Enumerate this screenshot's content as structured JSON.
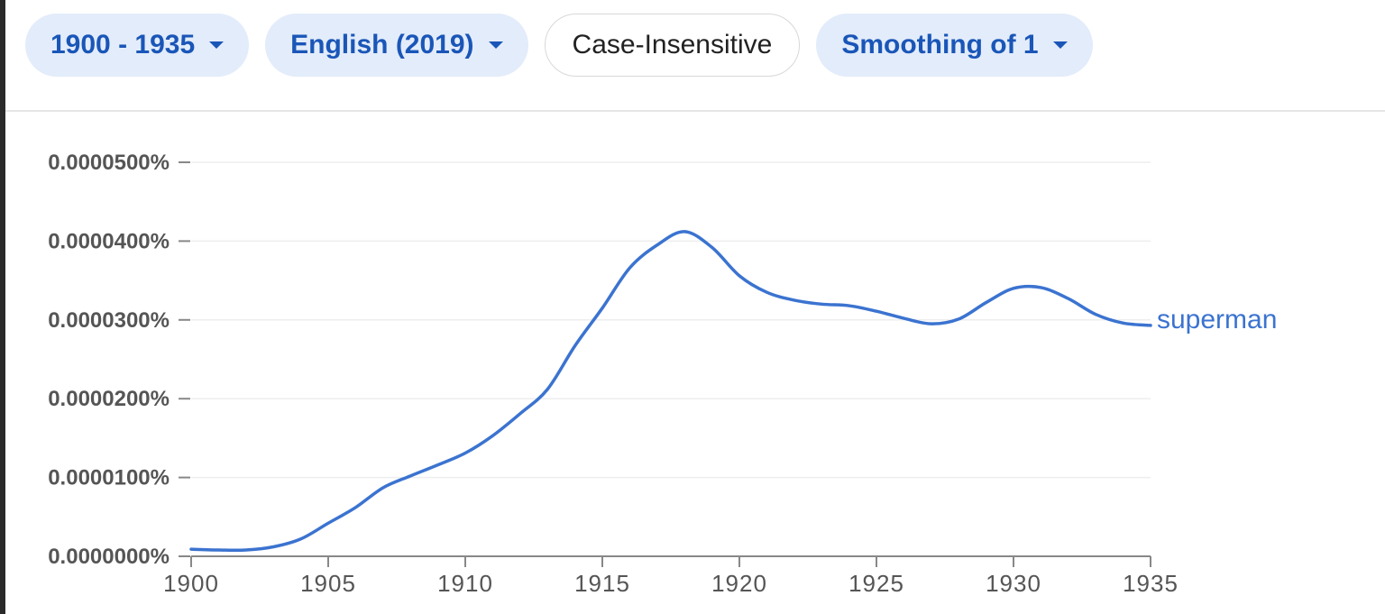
{
  "toolbar": {
    "year_range": "1900 - 1935",
    "corpus": "English (2019)",
    "case": "Case-Insensitive",
    "smoothing": "Smoothing of 1"
  },
  "colors": {
    "accent": "#1a56b8",
    "chip_bg": "#e3ecfa",
    "line": "#3b73d0"
  },
  "chart_data": {
    "type": "line",
    "title": "",
    "xlabel": "",
    "ylabel": "",
    "xlim": [
      1900,
      1935
    ],
    "ylim": [
      0,
      5e-05
    ],
    "grid": true,
    "x_ticks": [
      "1900",
      "1905",
      "1910",
      "1915",
      "1920",
      "1925",
      "1930",
      "1935"
    ],
    "x_tick_values": [
      1900,
      1905,
      1910,
      1915,
      1920,
      1925,
      1930,
      1935
    ],
    "y_ticks": [
      "0.0000000%",
      "0.0000100%",
      "0.0000200%",
      "0.0000300%",
      "0.0000400%",
      "0.0000500%"
    ],
    "y_tick_values": [
      0,
      1e-05,
      2e-05,
      3e-05,
      4e-05,
      5e-05
    ],
    "series": [
      {
        "name": "superman",
        "x": [
          1900,
          1901,
          1902,
          1903,
          1904,
          1905,
          1906,
          1907,
          1908,
          1909,
          1910,
          1911,
          1912,
          1913,
          1914,
          1915,
          1916,
          1917,
          1918,
          1919,
          1920,
          1921,
          1922,
          1923,
          1924,
          1925,
          1926,
          1927,
          1928,
          1929,
          1930,
          1931,
          1932,
          1933,
          1934,
          1935
        ],
        "y": [
          9e-07,
          8e-07,
          8e-07,
          1.2e-06,
          2.2e-06,
          4.2e-06,
          6.2e-06,
          8.7e-06,
          1.02e-05,
          1.16e-05,
          1.31e-05,
          1.53e-05,
          1.81e-05,
          2.12e-05,
          2.67e-05,
          3.15e-05,
          3.66e-05,
          3.95e-05,
          4.12e-05,
          3.92e-05,
          3.56e-05,
          3.35e-05,
          3.25e-05,
          3.2e-05,
          3.18e-05,
          3.11e-05,
          3.02e-05,
          2.95e-05,
          3.01e-05,
          3.22e-05,
          3.4e-05,
          3.41e-05,
          3.27e-05,
          3.07e-05,
          2.96e-05,
          2.93e-05
        ]
      }
    ]
  }
}
